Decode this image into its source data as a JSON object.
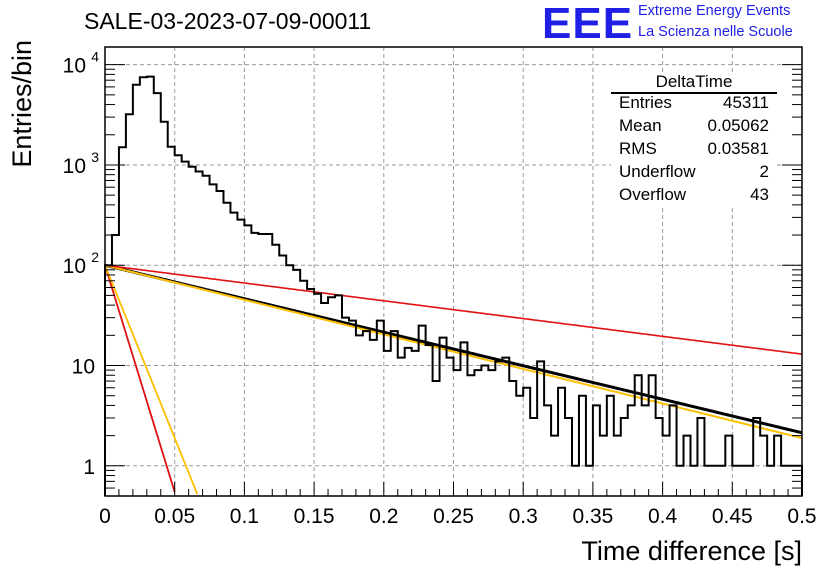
{
  "header": {
    "run_title": "SALE-03-2023-07-09-00011",
    "logo_text": "EEE",
    "logo_line1": "Extreme Energy Events",
    "logo_line2": "La Scienza nelle Scuole",
    "logo_color": "#1f1fe6"
  },
  "stats": {
    "title": "DeltaTime",
    "rows": [
      {
        "label": "Entries",
        "value": "45311"
      },
      {
        "label": "Mean",
        "value": "0.05062"
      },
      {
        "label": "RMS",
        "value": "0.03581"
      },
      {
        "label": "Underflow",
        "value": "2"
      },
      {
        "label": "Overflow",
        "value": "43"
      }
    ]
  },
  "chart_data": {
    "type": "line",
    "xlabel": "Time difference [s]",
    "ylabel": "Entries/bin",
    "xlim": [
      0,
      0.5
    ],
    "ylim": [
      0.5,
      15000
    ],
    "y_scale": "log",
    "grid": true,
    "x_ticks": [
      "0",
      "0.05",
      "0.1",
      "0.15",
      "0.2",
      "0.25",
      "0.3",
      "0.35",
      "0.4",
      "0.45",
      "0.5"
    ],
    "y_ticks": [
      {
        "value": 1,
        "label": "1",
        "sup": ""
      },
      {
        "value": 10,
        "label": "10",
        "sup": ""
      },
      {
        "value": 100,
        "label": "10",
        "sup": "2"
      },
      {
        "value": 1000,
        "label": "10",
        "sup": "3"
      },
      {
        "value": 10000,
        "label": "10",
        "sup": "4"
      }
    ],
    "histogram": {
      "x_min": 0,
      "bin_width": 0.005,
      "color": "#000000",
      "counts": [
        100,
        200,
        1500,
        3200,
        6300,
        7500,
        7600,
        5200,
        2700,
        1520,
        1250,
        1080,
        960,
        860,
        780,
        640,
        550,
        420,
        335,
        285,
        250,
        210,
        205,
        205,
        160,
        125,
        100,
        90,
        70,
        58,
        52,
        42,
        48,
        50,
        30,
        28,
        20,
        22,
        18,
        28,
        14,
        22,
        12,
        15,
        14,
        25,
        16,
        7,
        19,
        12,
        9,
        17,
        8,
        9,
        10,
        9,
        11,
        12,
        7,
        5,
        6,
        3,
        11,
        4,
        2,
        6,
        3,
        1,
        5,
        1,
        4,
        2,
        5,
        2,
        3,
        4,
        8,
        4,
        8,
        3,
        2,
        4,
        1,
        2,
        1,
        3,
        1,
        1,
        1,
        2,
        1,
        1,
        1,
        3,
        2,
        1,
        2,
        1,
        1,
        1
      ]
    },
    "series": [
      {
        "color": "#000000",
        "A": 100,
        "tau": 0.13,
        "width": 3
      },
      {
        "color": "#ffbf00",
        "A": 100,
        "tau": 0.126,
        "width": 2
      },
      {
        "color": "#e01010",
        "A": 100,
        "tau": 0.245,
        "width": 1.6
      },
      {
        "color": "#e01010",
        "A": 100,
        "tau": 0.0096,
        "width": 1.8
      },
      {
        "color": "#ffbf00",
        "A": 100,
        "tau": 0.0126,
        "width": 1.8
      }
    ]
  }
}
